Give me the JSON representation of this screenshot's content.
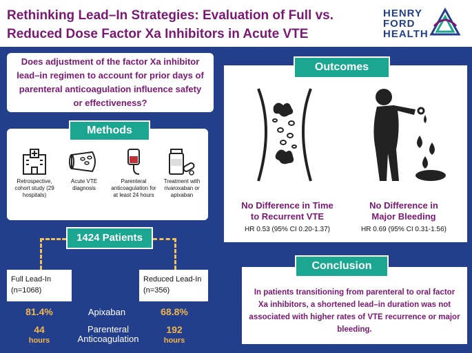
{
  "header": {
    "title_line1": "Rethinking Lead–In Strategies: Evaluation of Full vs.",
    "title_line2": "Reduced Dose Factor Xa Inhibitors in Acute VTE",
    "logo_line1": "HENRY",
    "logo_line2": "FORD",
    "logo_line3": "HEALTH"
  },
  "question": "Does adjustment of the factor Xa inhibitor lead–in regimen to account for prior days of parenteral anticoagulation influence safety or effectiveness?",
  "methods": {
    "label": "Methods",
    "items": [
      {
        "label": "Retrospective, cohort study (29 hospitals)",
        "icon": "hospital-icon"
      },
      {
        "label": "Acute VTE diagnosis",
        "icon": "blood-vessel-icon"
      },
      {
        "label": "Parenteral anticoagulation for at least 24 hours",
        "icon": "iv-bag-icon"
      },
      {
        "label": "Treatment with rivaroxaban or apixaban",
        "icon": "pill-bottle-icon"
      }
    ]
  },
  "patients": {
    "label": "1424 Patients",
    "full": {
      "name": "Full Lead-In",
      "n": "(n=1068)",
      "apixaban": "81.4%",
      "parenteral_value": "44",
      "parenteral_unit": "hours"
    },
    "reduced": {
      "name": "Reduced Lead-In",
      "n": "(n=356)",
      "apixaban": "68.8%",
      "parenteral_value": "192",
      "parenteral_unit": "hours"
    },
    "row_apixaban": "Apixaban",
    "row_parenteral_1": "Parenteral",
    "row_parenteral_2": "Anticoagulation"
  },
  "outcomes": {
    "label": "Outcomes",
    "vte": {
      "title_1": "No Difference in Time",
      "title_2": "to Recurrent VTE",
      "hr": "HR 0.53 (95% CI 0.20-1.37)"
    },
    "bleeding": {
      "title_1": "No Difference in",
      "title_2": "Major Bleeding",
      "hr": "HR 0.69 (95% CI 0.31-1.56)"
    }
  },
  "conclusion": {
    "label": "Conclusion",
    "text": "In patients transitioning from parenteral to oral factor Xa inhibitors, a shortened lead–in duration was not associated with higher rates of VTE recurrence or major bleeding."
  },
  "colors": {
    "navy": "#233f8c",
    "purple": "#7a1873",
    "teal": "#1aa690",
    "gold": "#f0b54c"
  }
}
